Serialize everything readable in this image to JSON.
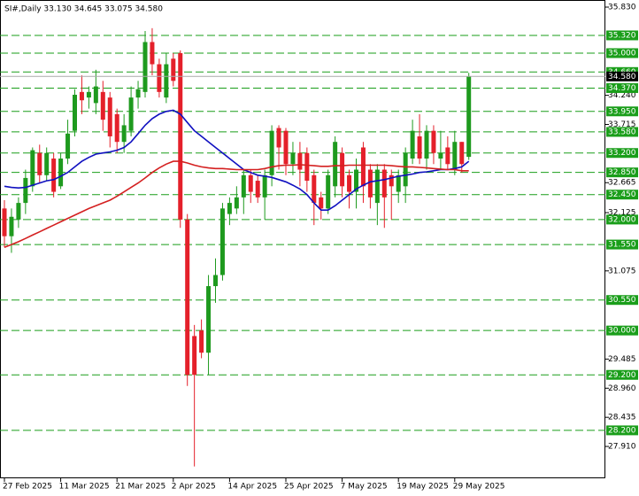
{
  "chart_data": {
    "type": "candlestick",
    "title": "SI#,Daily  33.130 34.645 33.075 34.580",
    "categories": [
      "27 Feb 2025",
      null,
      null,
      null,
      null,
      null,
      null,
      null,
      "11 Mar 2025",
      null,
      null,
      null,
      null,
      null,
      null,
      null,
      "21 Mar 2025",
      null,
      null,
      null,
      null,
      null,
      null,
      null,
      "2 Apr 2025",
      null,
      null,
      null,
      null,
      null,
      null,
      null,
      "14 Apr 2025",
      null,
      null,
      null,
      null,
      null,
      null,
      null,
      "25 Apr 2025",
      null,
      null,
      null,
      null,
      null,
      null,
      null,
      "7 May 2025",
      null,
      null,
      null,
      null,
      null,
      null,
      null,
      "19 May 2025",
      null,
      null,
      null,
      null,
      null,
      null,
      null,
      "29 May 2025",
      null,
      null
    ],
    "open": [
      32.2,
      31.7,
      32.0,
      32.3,
      32.6,
      33.2,
      32.8,
      33.1,
      32.6,
      33.1,
      33.6,
      34.3,
      34.2,
      34.1,
      34.3,
      34.2,
      33.9,
      33.4,
      33.6,
      34.2,
      34.3,
      35.2,
      34.8,
      34.2,
      34.9,
      35.0,
      32.0,
      29.9,
      30.0,
      29.6,
      30.8,
      31.0,
      32.1,
      32.2,
      32.4,
      32.8,
      32.7,
      32.4,
      32.8,
      33.65,
      33.6,
      33.0,
      33.2,
      33.2,
      32.8,
      32.4,
      32.2,
      32.6,
      33.2,
      32.8,
      32.5,
      33.3,
      32.9,
      32.3,
      32.9,
      32.8,
      32.5,
      32.6,
      33.1,
      33.5,
      33.1,
      33.6,
      33.1,
      33.3,
      32.9,
      33.4,
      33.13
    ],
    "high": [
      32.35,
      32.2,
      32.4,
      32.9,
      33.3,
      33.35,
      33.3,
      33.2,
      33.2,
      33.8,
      34.35,
      34.6,
      34.4,
      34.7,
      34.5,
      34.3,
      34.0,
      33.9,
      34.4,
      34.5,
      35.4,
      35.45,
      34.9,
      35.0,
      35.0,
      35.05,
      32.1,
      30.1,
      30.2,
      31.0,
      31.3,
      32.3,
      32.4,
      32.6,
      32.9,
      32.9,
      32.8,
      32.9,
      33.7,
      33.7,
      33.65,
      33.4,
      33.4,
      33.3,
      32.9,
      32.5,
      32.9,
      33.5,
      33.3,
      32.9,
      33.1,
      33.4,
      33.0,
      33.0,
      33.0,
      32.9,
      32.9,
      33.3,
      33.8,
      33.9,
      33.7,
      33.7,
      33.6,
      33.5,
      33.6,
      33.4,
      34.645
    ],
    "low": [
      31.5,
      31.4,
      31.85,
      32.1,
      32.5,
      32.65,
      32.7,
      32.4,
      32.55,
      33.0,
      33.5,
      33.9,
      34.0,
      33.9,
      33.6,
      33.3,
      33.2,
      33.2,
      33.5,
      34.0,
      34.2,
      34.6,
      34.2,
      34.1,
      34.4,
      31.85,
      29.0,
      27.55,
      29.5,
      29.2,
      30.5,
      30.9,
      31.9,
      32.1,
      32.1,
      32.3,
      32.3,
      32.0,
      32.6,
      32.9,
      32.8,
      32.8,
      32.6,
      32.5,
      31.9,
      32.0,
      32.1,
      32.4,
      32.4,
      32.2,
      32.2,
      32.3,
      32.2,
      31.9,
      31.85,
      32.0,
      32.3,
      32.3,
      33.0,
      33.0,
      32.9,
      33.0,
      32.9,
      32.9,
      32.8,
      32.85,
      33.075
    ],
    "close": [
      31.7,
      32.05,
      32.3,
      32.75,
      33.25,
      32.8,
      33.2,
      32.5,
      33.1,
      33.55,
      34.25,
      34.15,
      34.3,
      34.4,
      33.8,
      33.5,
      33.4,
      33.7,
      34.2,
      34.35,
      35.2,
      34.8,
      34.3,
      34.8,
      34.5,
      32.0,
      29.2,
      29.2,
      29.6,
      30.8,
      31.0,
      32.2,
      32.3,
      32.4,
      32.8,
      32.5,
      32.4,
      32.8,
      33.6,
      33.3,
      33.0,
      33.2,
      32.9,
      32.7,
      32.3,
      32.2,
      32.8,
      33.4,
      32.6,
      32.5,
      32.9,
      32.6,
      32.4,
      32.9,
      32.4,
      32.6,
      32.8,
      33.2,
      33.6,
      33.1,
      33.6,
      33.2,
      33.2,
      33.0,
      33.4,
      33.0,
      34.58
    ],
    "color_up": "#1e9a1e",
    "color_down": "#e4202a",
    "series": [
      {
        "color": "#1010c0",
        "values": [
          32.6,
          32.58,
          32.57,
          32.58,
          32.62,
          32.66,
          32.7,
          32.72,
          32.78,
          32.85,
          32.95,
          33.05,
          33.12,
          33.18,
          33.2,
          33.22,
          33.25,
          33.3,
          33.4,
          33.55,
          33.7,
          33.82,
          33.9,
          33.95,
          33.97,
          33.9,
          33.75,
          33.6,
          33.5,
          33.4,
          33.3,
          33.2,
          33.1,
          33.0,
          32.9,
          32.85,
          32.8,
          32.78,
          32.76,
          32.72,
          32.68,
          32.62,
          32.55,
          32.45,
          32.3,
          32.17,
          32.17,
          32.25,
          32.35,
          32.45,
          32.55,
          32.62,
          32.68,
          32.7,
          32.72,
          32.75,
          32.78,
          32.8,
          32.82,
          32.85,
          32.86,
          32.88,
          32.9,
          32.9,
          32.92,
          32.95,
          33.05
        ]
      },
      {
        "color": "#d42020",
        "values": [
          31.5,
          31.55,
          31.6,
          31.66,
          31.72,
          31.78,
          31.84,
          31.9,
          31.96,
          32.02,
          32.08,
          32.14,
          32.2,
          32.25,
          32.3,
          32.35,
          32.42,
          32.5,
          32.58,
          32.66,
          32.75,
          32.85,
          32.93,
          33.0,
          33.05,
          33.05,
          33.02,
          32.98,
          32.95,
          32.93,
          32.92,
          32.92,
          32.91,
          32.9,
          32.9,
          32.9,
          32.9,
          32.92,
          32.95,
          32.97,
          32.98,
          32.98,
          32.99,
          32.98,
          32.97,
          32.96,
          32.96,
          32.97,
          32.97,
          32.98,
          32.98,
          32.98,
          32.98,
          32.98,
          32.98,
          32.97,
          32.96,
          32.95,
          32.95,
          32.94,
          32.93,
          32.92,
          32.91,
          32.9,
          32.9,
          32.88,
          32.88
        ]
      }
    ],
    "ylim": [
      27.336,
      35.958
    ],
    "yticks": [
      {
        "value": 35.83,
        "label": "35.830"
      },
      {
        "value": 34.24,
        "label": "34.240"
      },
      {
        "value": 33.715,
        "label": "33.715"
      },
      {
        "value": 32.665,
        "label": "32.665"
      },
      {
        "value": 32.125,
        "label": "32.125"
      },
      {
        "value": 31.075,
        "label": "31.075"
      },
      {
        "value": 29.485,
        "label": "29.485"
      },
      {
        "value": 28.96,
        "label": "28.960"
      },
      {
        "value": 28.435,
        "label": "28.435"
      },
      {
        "value": 27.91,
        "label": "27.910"
      }
    ],
    "levels": [
      {
        "value": 35.32,
        "label": "35.320"
      },
      {
        "value": 35.0,
        "label": "35.000"
      },
      {
        "value": 34.66,
        "label": "34.660"
      },
      {
        "value": 34.37,
        "label": "34.370"
      },
      {
        "value": 33.95,
        "label": "33.950"
      },
      {
        "value": 33.58,
        "label": "33.580"
      },
      {
        "value": 33.2,
        "label": "33.200"
      },
      {
        "value": 32.85,
        "label": "32.850"
      },
      {
        "value": 32.45,
        "label": "32.450"
      },
      {
        "value": 32.0,
        "label": "32.000"
      },
      {
        "value": 31.55,
        "label": "31.550"
      },
      {
        "value": 30.55,
        "label": "30.550"
      },
      {
        "value": 30.0,
        "label": "30.000"
      },
      {
        "value": 29.2,
        "label": "29.200"
      },
      {
        "value": 28.2,
        "label": "28.200"
      }
    ],
    "level_color": "#1a9e1a",
    "last_price": {
      "value": 34.58,
      "label": "34.580"
    }
  }
}
